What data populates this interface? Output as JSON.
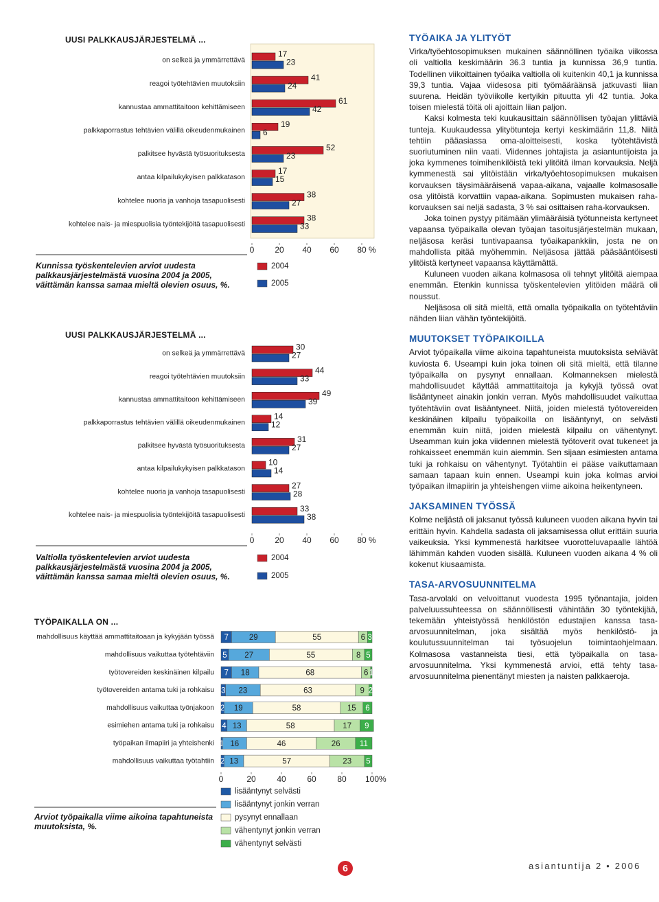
{
  "chart_data": [
    {
      "type": "bar",
      "orientation": "horizontal",
      "title": "UUSI PALKKAUSJÄRJESTELMÄ ...",
      "categories": [
        "on selkeä ja ymmärrettävä",
        "reagoi työtehtävien muutoksiin",
        "kannustaa ammattitaitoon kehittämiseen",
        "palkkaporrastus tehtävien välillä oikeudenmukainen",
        "palkitsee hyvästä työsuorituksesta",
        "antaa kilpailukykyisen palkkatason",
        "kohtelee nuoria ja vanhoja tasapuolisesti",
        "kohtelee nais- ja miespuolisia työntekijöitä tasapuolisesti"
      ],
      "series": [
        {
          "name": "2004",
          "color": "#c8202a",
          "values": [
            17,
            41,
            61,
            19,
            52,
            17,
            38,
            38
          ]
        },
        {
          "name": "2005",
          "color": "#1e4fa0",
          "values": [
            23,
            24,
            42,
            6,
            23,
            15,
            27,
            33
          ]
        }
      ],
      "xlim": [
        0,
        80
      ],
      "xticks": [
        0,
        20,
        40,
        60,
        80
      ],
      "xunit": "%",
      "caption": "Kunnissa työskentelevien arviot uudesta palkkausjärjestelmästä vuosina 2004 ja 2005, väittämän kanssa samaa mieltä olevien osuus, %."
    },
    {
      "type": "bar",
      "orientation": "horizontal",
      "title": "UUSI PALKKAUSJÄRJESTELMÄ ...",
      "categories": [
        "on selkeä ja ymmärrettävä",
        "reagoi työtehtävien muutoksiin",
        "kannustaa ammattitaitoon kehittämiseen",
        "palkkaporrastus tehtävien välillä oikeudenmukainen",
        "palkitsee hyvästä työsuorituksesta",
        "antaa kilpailukykyisen palkkatason",
        "kohtelee nuoria ja vanhoja tasapuolisesti",
        "kohtelee nais- ja miespuolisia työntekijöitä tasapuolisesti"
      ],
      "series": [
        {
          "name": "2004",
          "color": "#c8202a",
          "values": [
            30,
            44,
            49,
            14,
            31,
            10,
            27,
            33
          ]
        },
        {
          "name": "2005",
          "color": "#1e4fa0",
          "values": [
            27,
            33,
            39,
            12,
            27,
            14,
            28,
            38
          ]
        }
      ],
      "xlim": [
        0,
        80
      ],
      "xticks": [
        0,
        20,
        40,
        60,
        80
      ],
      "xunit": "%",
      "caption": "Valtiolla työskentelevien arviot uudesta palkkausjärjestelmästä vuosina 2004 ja 2005, väittämän kanssa samaa mieltä olevien osuus, %."
    },
    {
      "type": "stacked_bar",
      "orientation": "horizontal",
      "title": "TYÖPAIKALLA ON ...",
      "categories": [
        "mahdollisuus käyttää ammattitaitoaan ja kykyjään työssä",
        "mahdollisuus vaikuttaa työtehtäviin",
        "työtovereiden keskinäinen kilpailu",
        "työtovereiden antama tuki ja rohkaisu",
        "mahdollisuus vaikuttaa työnjakoon",
        "esimiehen antama tuki ja rohkaisu",
        "työpaikan ilmapiiri ja yhteishenki",
        "mahdollisuus vaikuttaa työtahtiin"
      ],
      "series": [
        {
          "name": "lisääntynyt selvästi",
          "color": "#1f5aa6",
          "values": [
            7,
            5,
            7,
            3,
            2,
            4,
            1,
            2
          ]
        },
        {
          "name": "lisääntynyt jonkin verran",
          "color": "#56a8dc",
          "values": [
            29,
            27,
            18,
            23,
            19,
            13,
            16,
            13
          ]
        },
        {
          "name": "pysynyt ennallaan",
          "color": "#fdf8e0",
          "values": [
            55,
            55,
            68,
            63,
            58,
            58,
            46,
            57
          ]
        },
        {
          "name": "vähentynyt jonkin verran",
          "color": "#b9e2a6",
          "values": [
            6,
            8,
            6,
            9,
            15,
            17,
            26,
            23
          ]
        },
        {
          "name": "vähentynyt selvästi",
          "color": "#3cae4a",
          "values": [
            3,
            5,
            1,
            2,
            6,
            9,
            11,
            5
          ]
        }
      ],
      "xlim": [
        0,
        100
      ],
      "xticks": [
        0,
        20,
        40,
        60,
        80,
        100
      ],
      "xunit": "%",
      "caption": "Arviot työpaikalla viime aikoina tapahtuneista muutoksista, %."
    }
  ],
  "article": {
    "sections": [
      {
        "heading": "TYÖAIKA JA YLITYÖT",
        "paragraphs": [
          "Virka/työehtosopimuksen mukainen säännöllinen työaika viikossa oli valtiolla keskimäärin 36.3 tuntia ja kunnissa 36,9 tuntia. Todellinen viikoittainen työaika valtiolla oli kuitenkin 40,1 ja kunnissa 39,3 tuntia. Vajaa viidesosa piti työmääräänsä jatkuvasti liian suurena. Heidän työviikolle kertyikin pituutta yli 42 tuntia. Joka toisen mielestä töitä oli ajoittain liian paljon.",
          "Kaksi kolmesta teki kuukausittain säännöllisen työajan ylittäviä tunteja. Kuukaudessa ylityötunteja kertyi keskimäärin 11,8. Niitä tehtiin pääasiassa oma-aloitteisesti, koska työtehtävistä suoriutuminen niin vaati. Viidennes johtajista ja asiantuntijoista ja joka kymmenes toimihenkilöistä teki ylitöitä ilman korvauksia. Neljä kymmenestä sai ylitöistään virka/työehtosopimuksen mukaisen korvauksen täysimääräisenä vapaa-aikana, vajaalle kolmasosalle osa ylitöistä korvattiin vapaa-aikana. Sopimusten mukaisen raha-korvauksen sai neljä sadasta, 3 % sai osittaisen raha-korvauksen.",
          "Joka toinen pystyy pitämään ylimääräisiä työtunneista kertyneet vapaansa työpaikalla olevan työajan tasoitusjärjestelmän mukaan, neljäsosa keräsi tuntivapaansa työaikapankkiin, josta ne on mahdollista pitää myöhemmin. Neljäsosa jättää pääsääntöisesti ylitöistä kertyneet vapaansa käyttämättä.",
          "Kuluneen vuoden aikana kolmasosa oli tehnyt ylitöitä aiempaa enemmän. Etenkin kunnissa työskentelevien ylitöiden määrä oli noussut.",
          "Neljäsosa oli sitä mieltä, että omalla työpaikalla on työtehtäviin nähden liian vähän työntekijöitä."
        ]
      },
      {
        "heading": "MUUTOKSET TYÖPAIKOILLA",
        "paragraphs": [
          "Arviot työpaikalla viime aikoina tapahtuneista muutoksista selviävät kuviosta 6. Useampi kuin joka toinen oli sitä mieltä, että tilanne työpaikalla on pysynyt ennallaan. Kolmanneksen mielestä mahdollisuudet käyttää ammattitaitoja ja kykyjä työssä ovat lisääntyneet ainakin jonkin verran. Myös mahdollisuudet vaikuttaa työtehtäviin ovat lisääntyneet. Niitä, joiden mielestä työtovereiden keskinäinen kilpailu työpaikoilla on lisääntynyt, on selvästi enemmän kuin niitä, joiden mielestä kilpailu on vähentynyt. Useamman kuin joka viidennen mielestä työtoverit ovat tukeneet ja rohkaisseet enemmän kuin aiemmin. Sen sijaan esimiesten antama tuki ja rohkaisu on vähentynyt. Työtahtiin ei pääse vaikuttamaan samaan tapaan kuin ennen. Useampi kuin joka kolmas arvioi työpaikan ilmapiirin ja yhteishengen viime aikoina heikentyneen."
        ]
      },
      {
        "heading": "JAKSAMINEN TYÖSSÄ",
        "paragraphs": [
          "Kolme neljästä oli jaksanut työssä kuluneen vuoden aikana hyvin tai erittäin hyvin. Kahdella sadasta oli jaksamisessa ollut erittäin suuria vaikeuksia. Yksi kymmenestä harkitsee vuorotteluvapaalle lähtöä lähimmän kahden vuoden sisällä. Kuluneen vuoden aikana 4 % oli kokenut kiusaamista."
        ]
      },
      {
        "heading": "TASA-ARVOSUUNNITELMA",
        "paragraphs": [
          "Tasa-arvolaki on velvoittanut vuodesta 1995 työnantajia, joiden palveluussuhteessa on säännöllisesti vähintään 30 työntekijää, tekemään yhteistyössä henkilöstön edustajien kanssa tasa-arvosuunnitelman, joka sisältää myös henkilöstö- ja koulutussuunnitelman tai työsuojelun toimintaohjelmaan. Kolmasosa vastanneista tiesi, että työpaikalla on tasa-arvosuunnitelma. Yksi kymmenestä arvioi, että tehty tasa-arvosuunnitelma pienentänyt miesten ja naisten palkkaeroja."
        ]
      }
    ]
  },
  "footer": {
    "page": "6",
    "magazine": "asiantuntija 2 • 2006"
  }
}
